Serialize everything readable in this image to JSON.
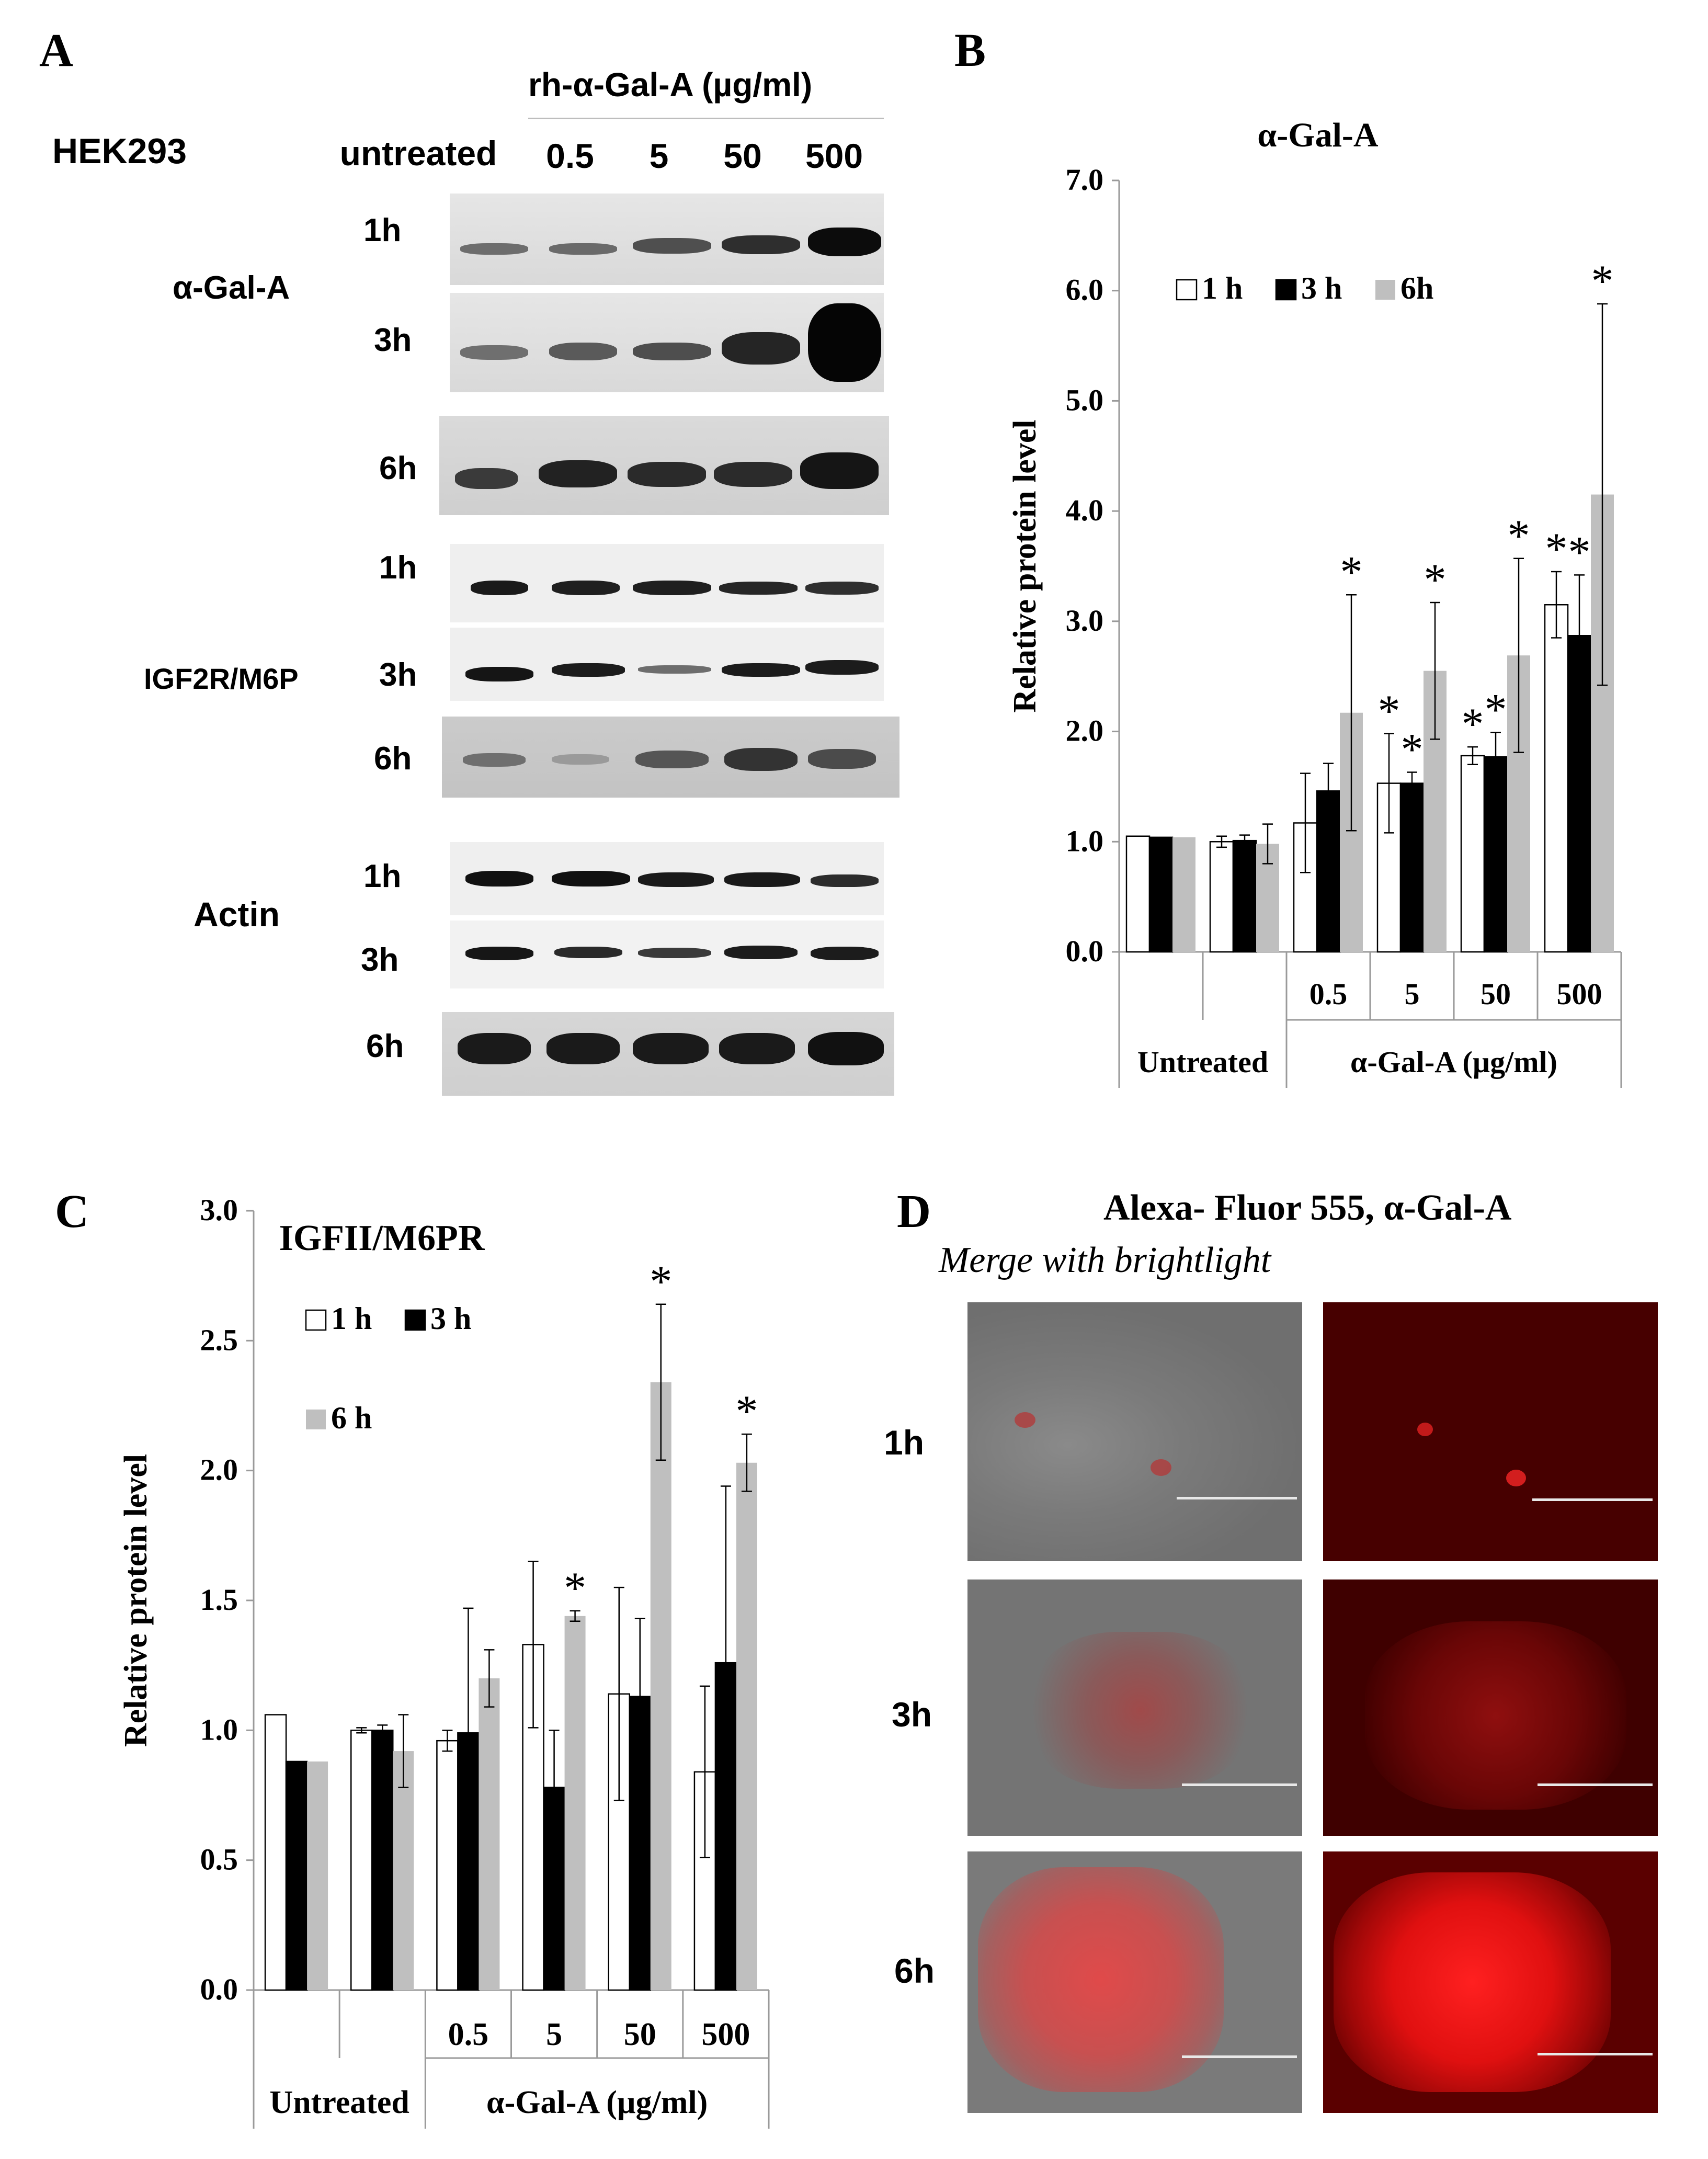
{
  "panel_letters": {
    "a": "A",
    "b": "B",
    "c": "C",
    "d": "D"
  },
  "panel_a": {
    "cell_line": "HEK293",
    "treatment_header": "rh-α-Gal-A (µg/ml)",
    "columns": [
      "untreated",
      "0.5",
      "5",
      "50",
      "500"
    ],
    "proteins": [
      {
        "name": "α-Gal-A",
        "times": [
          "1h",
          "3h",
          "6h"
        ]
      },
      {
        "name": "IGF2R/M6P",
        "times": [
          "1h",
          "3h",
          "6h"
        ]
      },
      {
        "name": "Actin",
        "times": [
          "1h",
          "3h",
          "6h"
        ]
      }
    ]
  },
  "chart_data": [
    {
      "id": "B",
      "type": "bar",
      "title": "α-Gal-A",
      "ylabel": "Relative protein level",
      "ylim": [
        0,
        7
      ],
      "yticks": [
        "0.0",
        "1.0",
        "2.0",
        "3.0",
        "4.0",
        "5.0",
        "6.0",
        "7.0"
      ],
      "categories": [
        "",
        "",
        "0.5",
        "5",
        "50",
        "500"
      ],
      "group_labels": [
        "Untreated",
        "α-Gal-A  (µg/ml)"
      ],
      "legend": [
        "1 h",
        "3 h",
        "6h"
      ],
      "series": [
        {
          "name": "1 h",
          "color": "#ffffff",
          "values": [
            1.05,
            1.0,
            1.17,
            1.53,
            1.78,
            3.15
          ],
          "errors": [
            0,
            0.05,
            0.45,
            0.45,
            0.08,
            0.3
          ],
          "stars": [
            [],
            [],
            [],
            [
              "*"
            ],
            [
              "*"
            ],
            [
              "*"
            ]
          ]
        },
        {
          "name": "3 h",
          "color": "#000000",
          "values": [
            1.04,
            1.01,
            1.46,
            1.53,
            1.77,
            2.87
          ],
          "errors": [
            0,
            0.05,
            0.25,
            0.1,
            0.22,
            0.55
          ],
          "stars": [
            [],
            [],
            [],
            [
              "*"
            ],
            [
              "*"
            ],
            [
              "*"
            ]
          ]
        },
        {
          "name": "6h",
          "color": "#bfbfbf",
          "values": [
            1.04,
            0.98,
            2.17,
            2.55,
            2.69,
            4.15
          ],
          "errors": [
            0,
            0.18,
            1.07,
            0.62,
            0.88,
            1.73
          ],
          "stars": [
            [],
            [],
            [
              "*"
            ],
            [
              "*"
            ],
            [
              "*"
            ],
            [
              "*"
            ]
          ]
        }
      ]
    },
    {
      "id": "C",
      "type": "bar",
      "title": "IGFII/M6PR",
      "ylabel": "Relative protein level",
      "ylim": [
        0,
        3
      ],
      "yticks": [
        "0.0",
        "0.5",
        "1.0",
        "1.5",
        "2.0",
        "2.5",
        "3.0"
      ],
      "categories": [
        "",
        "",
        "0.5",
        "5",
        "50",
        "500"
      ],
      "group_labels": [
        "Untreated",
        "α-Gal-A (µg/ml)"
      ],
      "legend": [
        "1 h",
        "3 h",
        "6 h"
      ],
      "series": [
        {
          "name": "1 h",
          "color": "#ffffff",
          "values": [
            1.06,
            1.0,
            0.96,
            1.33,
            1.14,
            0.84
          ],
          "errors": [
            0,
            0.01,
            0.04,
            0.32,
            0.41,
            0.33
          ],
          "stars": [
            [],
            [],
            [],
            [],
            [],
            []
          ]
        },
        {
          "name": "3 h",
          "color": "#000000",
          "values": [
            0.88,
            1.0,
            0.99,
            0.78,
            1.13,
            1.26
          ],
          "errors": [
            0,
            0.02,
            0.48,
            0.22,
            0.3,
            0.68
          ],
          "stars": [
            [],
            [],
            [],
            [],
            [],
            []
          ]
        },
        {
          "name": "6 h",
          "color": "#bfbfbf",
          "values": [
            0.88,
            0.92,
            1.2,
            1.44,
            2.34,
            2.03
          ],
          "errors": [
            0,
            0.14,
            0.11,
            0.02,
            0.3,
            0.11
          ],
          "stars": [
            [],
            [],
            [],
            [
              "*"
            ],
            [
              "*"
            ],
            [
              "*"
            ]
          ]
        }
      ]
    }
  ],
  "panel_d": {
    "title": "Alexa- Fluor 555, α-Gal-A",
    "subtitle": "Merge with brightlight",
    "rows": [
      "1h",
      "3h",
      "6h"
    ]
  }
}
